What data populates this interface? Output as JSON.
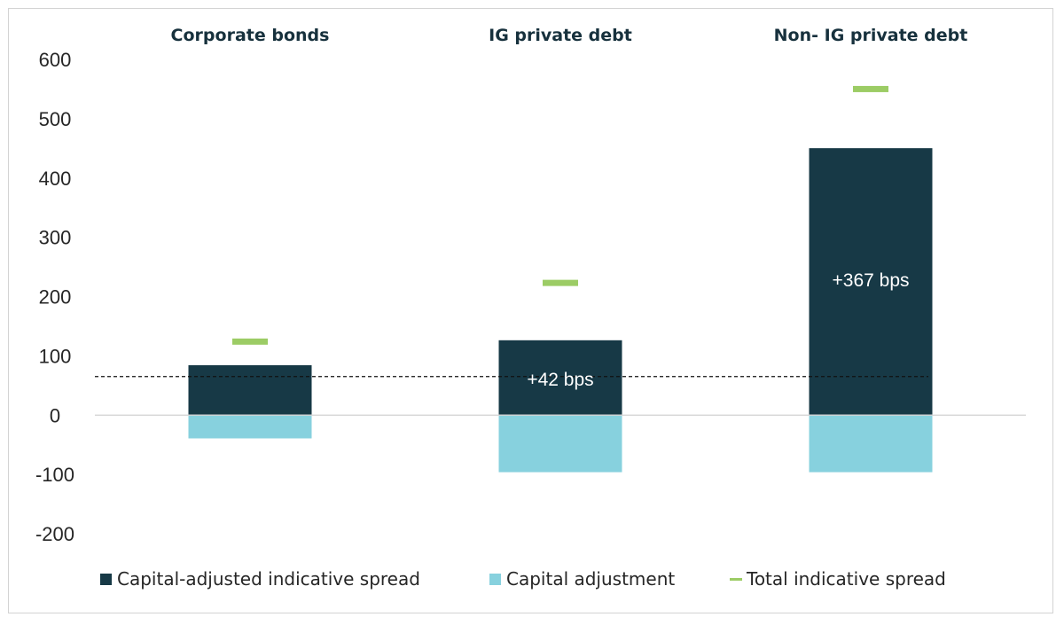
{
  "chart_data": {
    "type": "bar",
    "categories": [
      "Corporate bonds",
      "IG private debt",
      "Non- IG private debt"
    ],
    "series": [
      {
        "name": "Capital-adjusted indicative spread",
        "kind": "bar",
        "color": "#173946",
        "values": [
          85,
          127,
          451
        ]
      },
      {
        "name": "Capital adjustment",
        "kind": "bar",
        "color": "#87d1de",
        "values": [
          -40,
          -97,
          -97
        ]
      },
      {
        "name": "Total indicative spread",
        "kind": "marker",
        "color": "#9ccc65",
        "values": [
          124,
          223,
          550
        ]
      }
    ],
    "reference_line": {
      "value": 65,
      "style": "dashed"
    },
    "annotations": [
      {
        "category": "IG private debt",
        "text": "+42 bps",
        "y": 60
      },
      {
        "category": "Non- IG private debt",
        "text": "+367 bps",
        "y": 228
      }
    ],
    "ylim": [
      -200,
      600
    ],
    "yticks": [
      -200,
      -100,
      0,
      100,
      200,
      300,
      400,
      500,
      600
    ],
    "legend_position": "bottom",
    "grid": false
  }
}
